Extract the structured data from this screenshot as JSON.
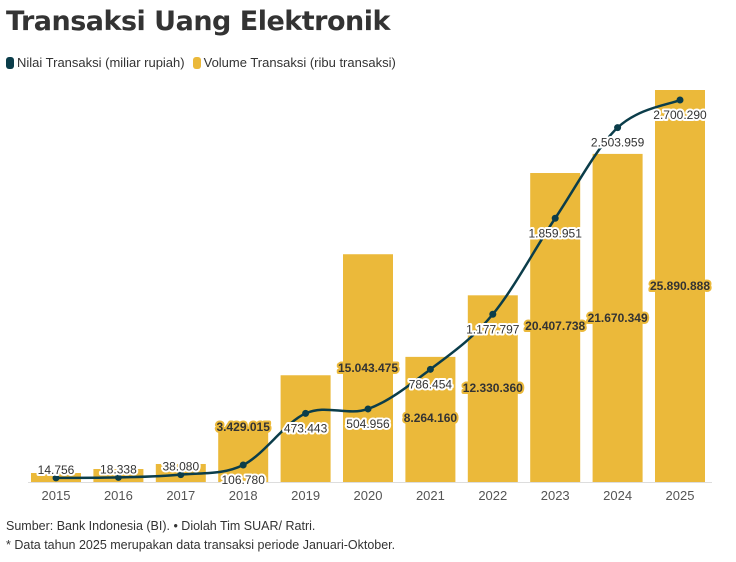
{
  "title": "Transaksi Uang Elektronik",
  "legend": [
    {
      "label": "Nilai Transaksi (miliar rupiah)",
      "color": "#0b3d4a"
    },
    {
      "label": "Volume Transaksi (ribu transaksi)",
      "color": "#ebb93a"
    }
  ],
  "chart_data": {
    "type": "bar+line",
    "categories": [
      "2015",
      "2016",
      "2017",
      "2018",
      "2019",
      "2020",
      "2021",
      "2022",
      "2023",
      "2024",
      "2025"
    ],
    "series": [
      {
        "name": "Volume Transaksi (ribu transaksi)",
        "type": "bar",
        "color": "#ebb93a",
        "values": [
          594000,
          858000,
          1190000,
          3429015,
          7050000,
          15043475,
          8264160,
          12330360,
          20407738,
          21670349,
          25890888
        ],
        "labels": [
          "",
          "",
          "",
          "3.429.015",
          "",
          "15.043.475",
          "8.264.160",
          "12.330.360",
          "20.407.738",
          "21.670.349",
          "25.890.888"
        ]
      },
      {
        "name": "Nilai Transaksi (miliar rupiah)",
        "type": "line",
        "color": "#0b3d4a",
        "values": [
          14756,
          18338,
          38080,
          106780,
          473443,
          504956,
          786454,
          1177797,
          1859951,
          2503959,
          2700290
        ],
        "labels": [
          "14.756",
          "18.338",
          "38.080",
          "106.780",
          "473.443",
          "504.956",
          "786.454",
          "1.177.797",
          "1.859.951",
          "2.503.959",
          "2.700.290"
        ]
      }
    ],
    "grid": false
  },
  "footnotes": [
    "Sumber: Bank Indonesia (BI). • Diolah Tim SUAR/ Ratri.",
    "* Data tahun 2025 merupakan data transaksi periode Januari-Oktober."
  ]
}
